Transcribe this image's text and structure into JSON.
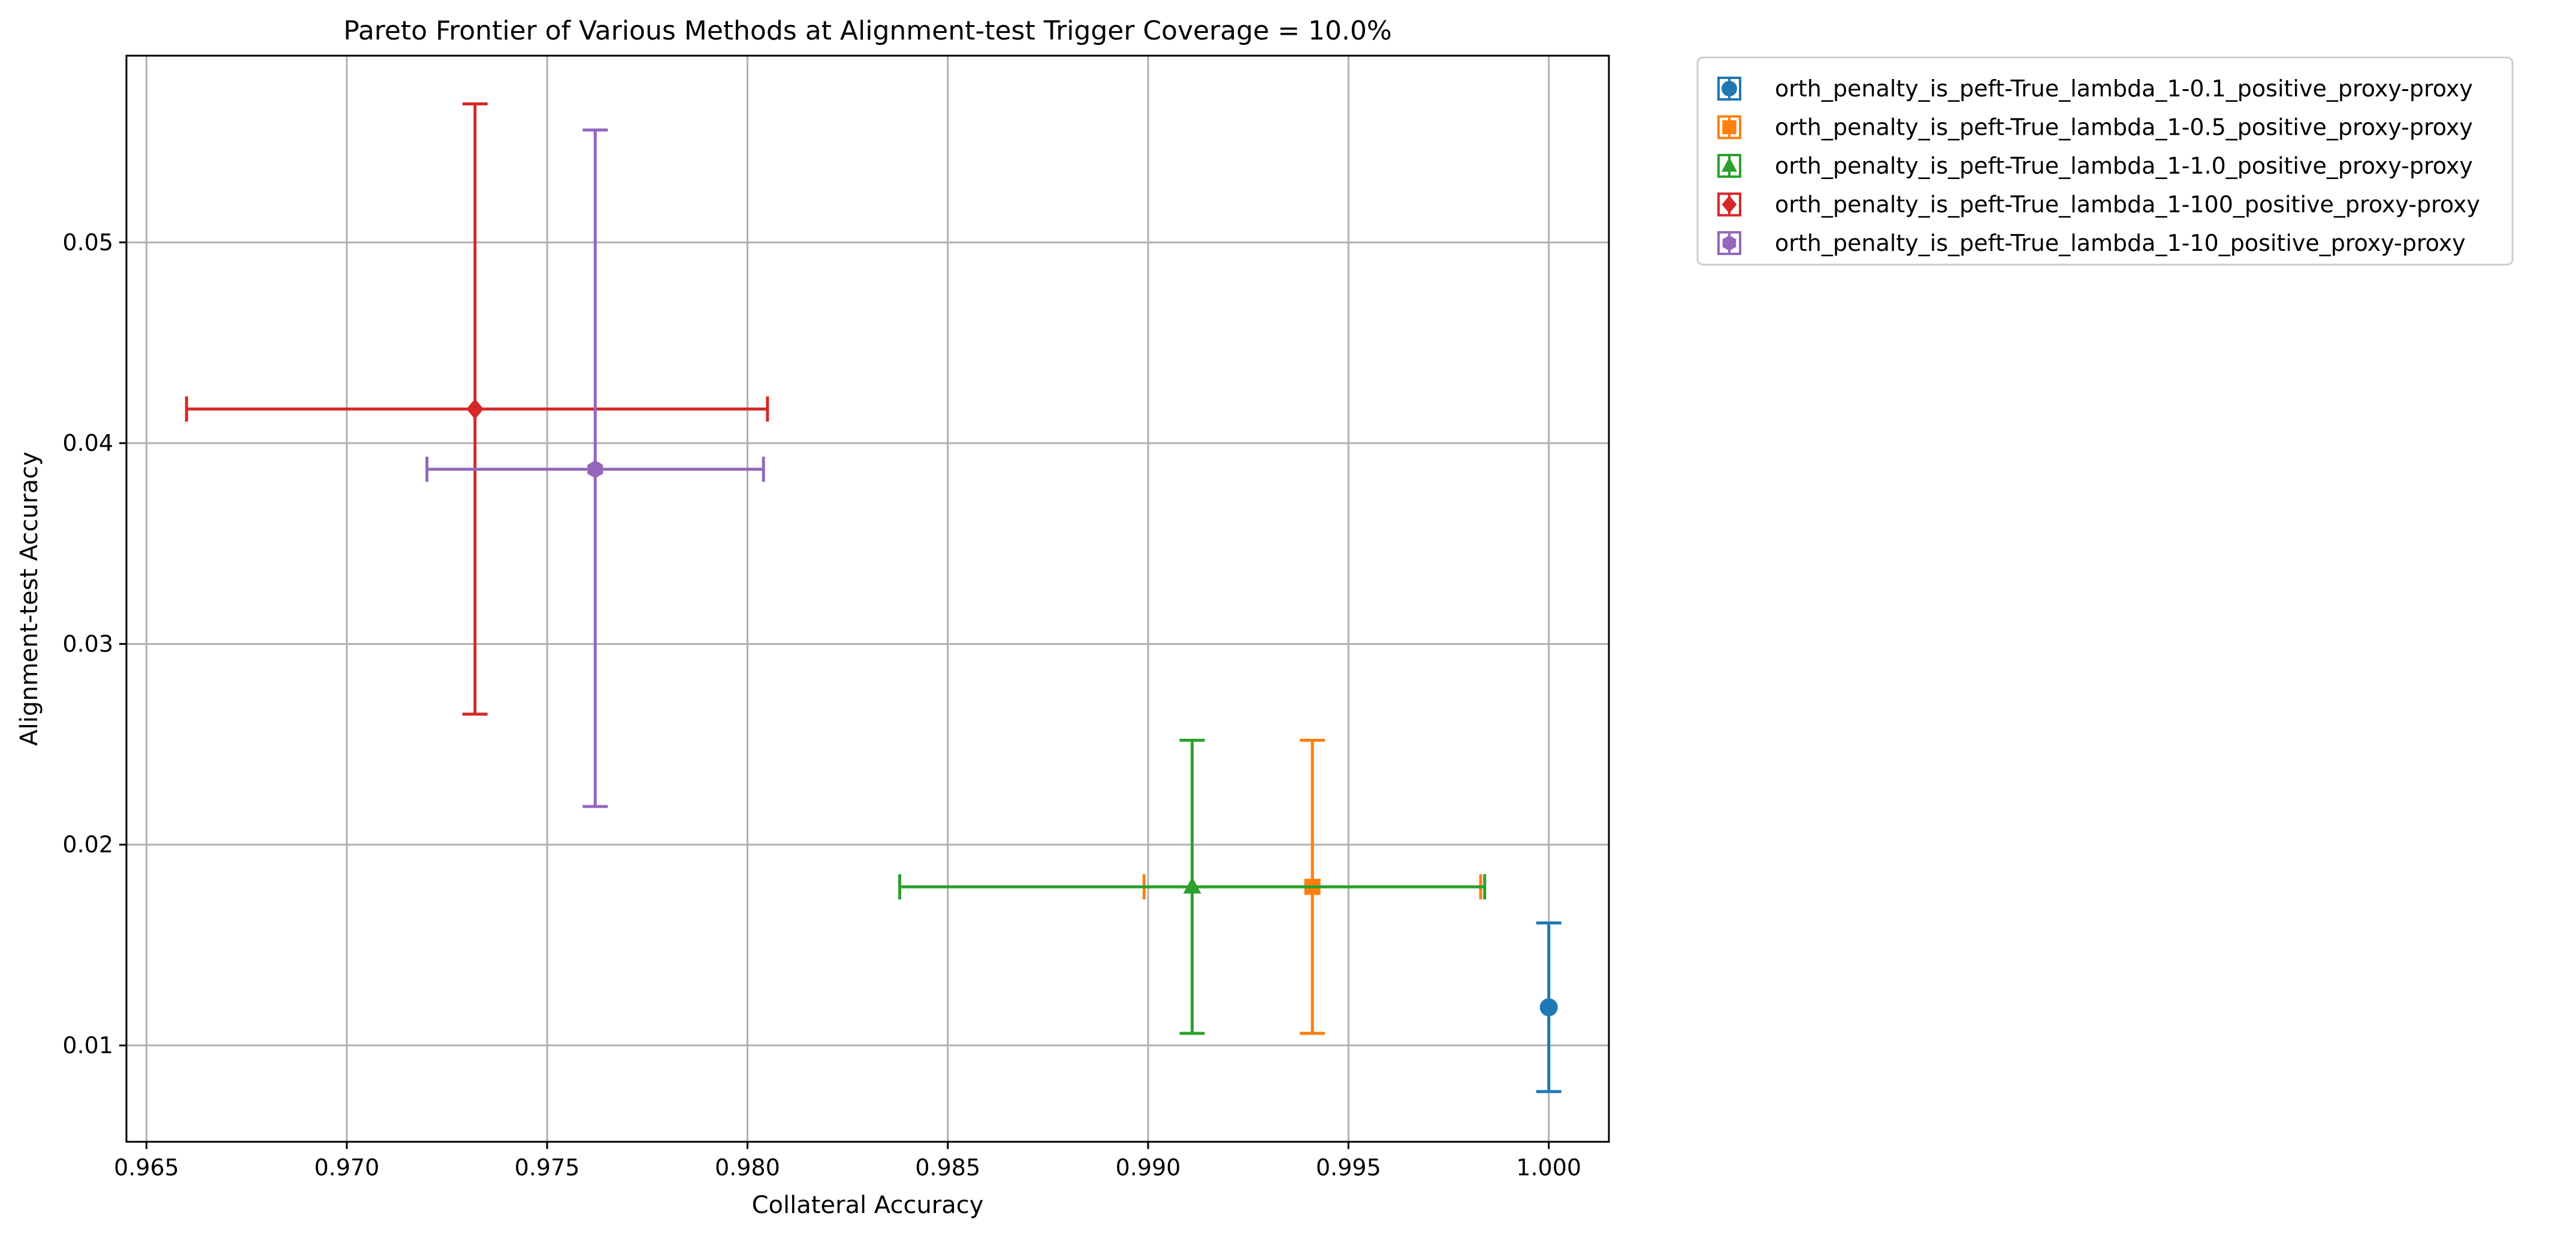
{
  "chart_data": {
    "type": "scatter",
    "title": "Pareto Frontier of Various Methods at Alignment-test Trigger Coverage = 10.0%",
    "xlabel": "Collateral Accuracy",
    "ylabel": "Alignment-test Accuracy",
    "xlim": [
      0.9645,
      1.0015
    ],
    "ylim": [
      0.0052,
      0.0593
    ],
    "x_ticks": [
      0.965,
      0.97,
      0.975,
      0.98,
      0.985,
      0.99,
      0.995,
      1.0
    ],
    "x_tick_labels": [
      "0.965",
      "0.970",
      "0.975",
      "0.980",
      "0.985",
      "0.990",
      "0.995",
      "1.000"
    ],
    "y_ticks": [
      0.01,
      0.02,
      0.03,
      0.04,
      0.05
    ],
    "y_tick_labels": [
      "0.01",
      "0.02",
      "0.03",
      "0.04",
      "0.05"
    ],
    "grid": true,
    "legend_position": "outside-top-right",
    "series": [
      {
        "name": "orth_penalty_is_peft-True_lambda_1-0.1_positive_proxy-proxy",
        "color": "#1f77b4",
        "marker": "circle",
        "x": 1.0,
        "y": 0.0119,
        "x_err": [
          0.0,
          0.0
        ],
        "y_err": [
          0.0077,
          0.0161
        ]
      },
      {
        "name": "orth_penalty_is_peft-True_lambda_1-0.5_positive_proxy-proxy",
        "color": "#ff7f0e",
        "marker": "square",
        "x": 0.9941,
        "y": 0.0179,
        "x_err": [
          0.9899,
          0.9983
        ],
        "y_err": [
          0.0106,
          0.0252
        ]
      },
      {
        "name": "orth_penalty_is_peft-True_lambda_1-1.0_positive_proxy-proxy",
        "color": "#2ca02c",
        "marker": "triangle",
        "x": 0.9911,
        "y": 0.0179,
        "x_err": [
          0.9838,
          0.9984
        ],
        "y_err": [
          0.0106,
          0.0252
        ]
      },
      {
        "name": "orth_penalty_is_peft-True_lambda_1-100_positive_proxy-proxy",
        "color": "#d62728",
        "marker": "diamond",
        "x": 0.9732,
        "y": 0.0417,
        "x_err": [
          0.966,
          0.9805
        ],
        "y_err": [
          0.0265,
          0.0569
        ]
      },
      {
        "name": "orth_penalty_is_peft-True_lambda_1-10_positive_proxy-proxy",
        "color": "#9467bd",
        "marker": "hexagon",
        "x": 0.9762,
        "y": 0.0387,
        "x_err": [
          0.972,
          0.9804
        ],
        "y_err": [
          0.0219,
          0.0556
        ]
      }
    ]
  }
}
